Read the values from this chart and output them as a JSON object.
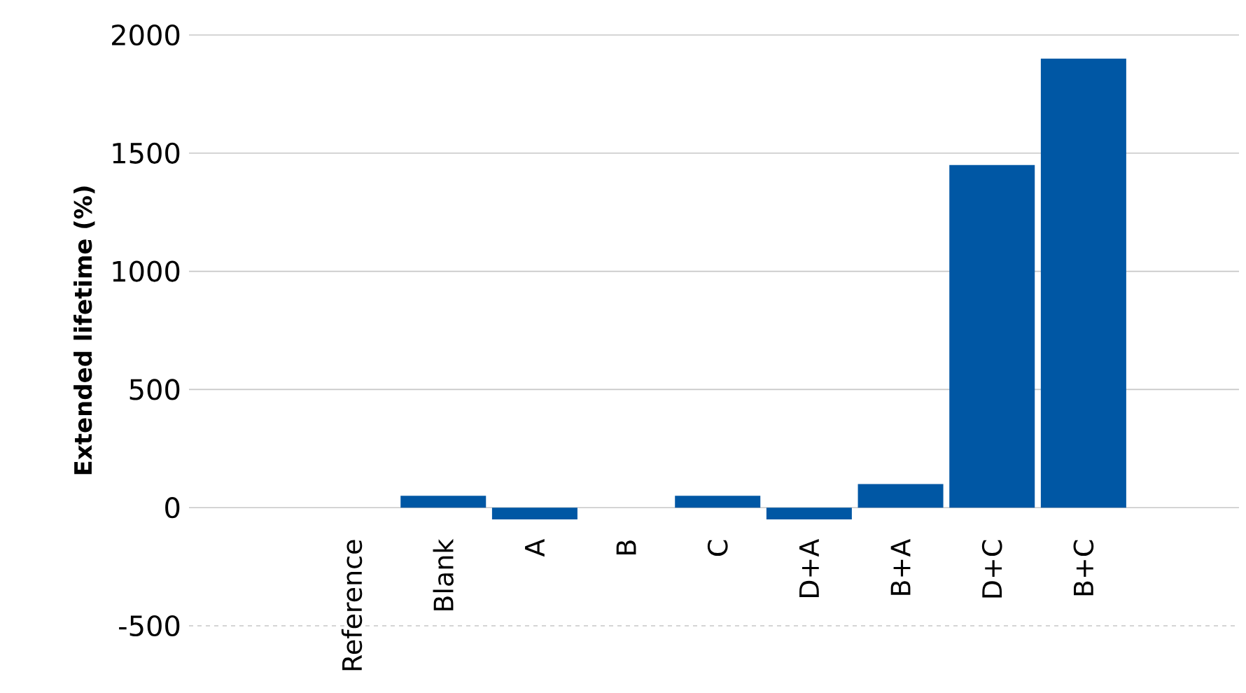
{
  "chart_data": {
    "type": "bar",
    "ylabel": "Extended lifetime (%)",
    "categories": [
      "Reference",
      "Blank",
      "A",
      "B",
      "C",
      "D+A",
      "B+A",
      "D+C",
      "B+C"
    ],
    "values": [
      0,
      50,
      -50,
      0,
      50,
      -50,
      100,
      1450,
      1900
    ],
    "color": "#0057a4",
    "ylim": [
      -500,
      2000
    ],
    "yticks": [
      -500,
      0,
      500,
      1000,
      1500,
      2000
    ],
    "grid": "y"
  }
}
